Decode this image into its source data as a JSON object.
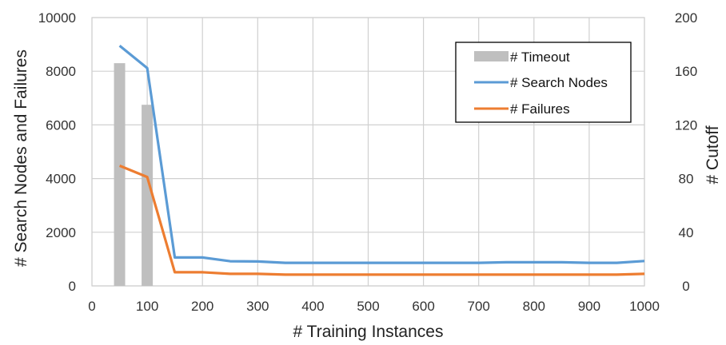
{
  "chart_data": {
    "type": "bar+line",
    "title": "",
    "xlabel": "# Training Instances",
    "ylabel_left": "# Search Nodes and Failures",
    "ylabel_right": "# Cutoff",
    "xlim": [
      0,
      1000
    ],
    "ylim_left": [
      0,
      10000
    ],
    "ylim_right": [
      0,
      200
    ],
    "x_ticks": [
      "0",
      "100",
      "200",
      "300",
      "400",
      "500",
      "600",
      "700",
      "800",
      "900",
      "1000"
    ],
    "y_ticks_left": [
      "0",
      "2000",
      "4000",
      "6000",
      "8000",
      "10000"
    ],
    "y_ticks_right": [
      "0",
      "40",
      "80",
      "120",
      "160",
      "200"
    ],
    "grid": true,
    "legend_position": "top-right",
    "x": [
      50,
      100,
      150,
      200,
      250,
      300,
      350,
      400,
      450,
      500,
      550,
      600,
      650,
      700,
      750,
      800,
      850,
      900,
      950,
      1000
    ],
    "series": [
      {
        "name": "# Timeout",
        "kind": "bar",
        "axis": "right",
        "color": "#bfbfbf",
        "values": [
          166,
          135,
          0,
          0,
          0,
          0,
          0,
          0,
          0,
          0,
          0,
          0,
          0,
          0,
          0,
          0,
          0,
          0,
          0,
          0
        ]
      },
      {
        "name": "# Search Nodes",
        "kind": "line",
        "axis": "left",
        "color": "#5b9bd5",
        "values": [
          8950,
          8120,
          1060,
          1060,
          920,
          910,
          860,
          860,
          860,
          860,
          860,
          860,
          860,
          860,
          880,
          880,
          880,
          860,
          860,
          930
        ]
      },
      {
        "name": "# Failures",
        "kind": "line",
        "axis": "left",
        "color": "#ed7d31",
        "values": [
          4480,
          4060,
          510,
          510,
          450,
          450,
          420,
          420,
          420,
          420,
          420,
          420,
          420,
          420,
          420,
          420,
          420,
          420,
          420,
          450
        ]
      }
    ]
  }
}
